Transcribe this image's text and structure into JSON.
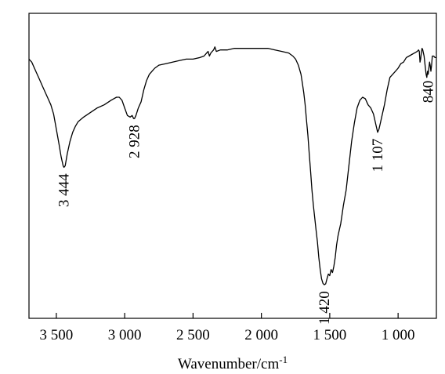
{
  "chart_data": {
    "type": "line",
    "xlabel": "Wavenumber/cm",
    "xlabel_superscript": "-1",
    "xlim": [
      3700,
      720
    ],
    "ylim": [
      0,
      1
    ],
    "x_reversed": true,
    "y_ticks_shown": false,
    "grid": false,
    "x_ticks": [
      {
        "value": 3500,
        "label": "3 500"
      },
      {
        "value": 3000,
        "label": "3 000"
      },
      {
        "value": 2500,
        "label": "2 500"
      },
      {
        "value": 2000,
        "label": "2 000"
      },
      {
        "value": 1500,
        "label": "1 500"
      },
      {
        "value": 1000,
        "label": "1 000"
      }
    ],
    "annotations": [
      {
        "label": "3 444",
        "x": 3444
      },
      {
        "label": "2 928",
        "x": 2928
      },
      {
        "label": "1 420",
        "x": 1540
      },
      {
        "label": "1 107",
        "x": 1150
      },
      {
        "label": "840",
        "x": 780
      }
    ],
    "series": [
      {
        "color": "#000000",
        "points": [
          [
            3700,
            0.85
          ],
          [
            3680,
            0.84
          ],
          [
            3650,
            0.81
          ],
          [
            3620,
            0.78
          ],
          [
            3600,
            0.76
          ],
          [
            3580,
            0.74
          ],
          [
            3560,
            0.72
          ],
          [
            3540,
            0.7
          ],
          [
            3520,
            0.67
          ],
          [
            3500,
            0.62
          ],
          [
            3480,
            0.57
          ],
          [
            3465,
            0.53
          ],
          [
            3450,
            0.5
          ],
          [
            3444,
            0.495
          ],
          [
            3435,
            0.5
          ],
          [
            3420,
            0.54
          ],
          [
            3400,
            0.58
          ],
          [
            3380,
            0.61
          ],
          [
            3360,
            0.63
          ],
          [
            3340,
            0.645
          ],
          [
            3300,
            0.66
          ],
          [
            3250,
            0.675
          ],
          [
            3200,
            0.69
          ],
          [
            3150,
            0.7
          ],
          [
            3100,
            0.715
          ],
          [
            3060,
            0.725
          ],
          [
            3040,
            0.725
          ],
          [
            3020,
            0.715
          ],
          [
            3000,
            0.69
          ],
          [
            2980,
            0.665
          ],
          [
            2960,
            0.66
          ],
          [
            2945,
            0.665
          ],
          [
            2935,
            0.655
          ],
          [
            2928,
            0.655
          ],
          [
            2918,
            0.665
          ],
          [
            2900,
            0.69
          ],
          [
            2880,
            0.71
          ],
          [
            2860,
            0.75
          ],
          [
            2840,
            0.78
          ],
          [
            2820,
            0.8
          ],
          [
            2800,
            0.81
          ],
          [
            2780,
            0.82
          ],
          [
            2750,
            0.83
          ],
          [
            2700,
            0.835
          ],
          [
            2650,
            0.84
          ],
          [
            2600,
            0.845
          ],
          [
            2550,
            0.85
          ],
          [
            2500,
            0.85
          ],
          [
            2450,
            0.855
          ],
          [
            2420,
            0.86
          ],
          [
            2400,
            0.87
          ],
          [
            2390,
            0.875
          ],
          [
            2380,
            0.86
          ],
          [
            2370,
            0.87
          ],
          [
            2350,
            0.88
          ],
          [
            2340,
            0.89
          ],
          [
            2330,
            0.875
          ],
          [
            2300,
            0.88
          ],
          [
            2250,
            0.88
          ],
          [
            2200,
            0.885
          ],
          [
            2150,
            0.885
          ],
          [
            2100,
            0.885
          ],
          [
            2050,
            0.885
          ],
          [
            2000,
            0.885
          ],
          [
            1950,
            0.885
          ],
          [
            1900,
            0.88
          ],
          [
            1850,
            0.875
          ],
          [
            1800,
            0.87
          ],
          [
            1770,
            0.86
          ],
          [
            1750,
            0.85
          ],
          [
            1730,
            0.83
          ],
          [
            1710,
            0.8
          ],
          [
            1700,
            0.77
          ],
          [
            1690,
            0.74
          ],
          [
            1680,
            0.7
          ],
          [
            1670,
            0.65
          ],
          [
            1660,
            0.6
          ],
          [
            1650,
            0.54
          ],
          [
            1640,
            0.48
          ],
          [
            1630,
            0.42
          ],
          [
            1620,
            0.37
          ],
          [
            1610,
            0.33
          ],
          [
            1600,
            0.29
          ],
          [
            1590,
            0.25
          ],
          [
            1580,
            0.2
          ],
          [
            1570,
            0.16
          ],
          [
            1560,
            0.13
          ],
          [
            1550,
            0.115
          ],
          [
            1540,
            0.11
          ],
          [
            1530,
            0.113
          ],
          [
            1520,
            0.13
          ],
          [
            1510,
            0.145
          ],
          [
            1500,
            0.14
          ],
          [
            1490,
            0.16
          ],
          [
            1480,
            0.15
          ],
          [
            1470,
            0.17
          ],
          [
            1460,
            0.2
          ],
          [
            1450,
            0.24
          ],
          [
            1440,
            0.27
          ],
          [
            1430,
            0.29
          ],
          [
            1420,
            0.31
          ],
          [
            1400,
            0.37
          ],
          [
            1380,
            0.42
          ],
          [
            1360,
            0.5
          ],
          [
            1340,
            0.58
          ],
          [
            1320,
            0.64
          ],
          [
            1300,
            0.69
          ],
          [
            1280,
            0.715
          ],
          [
            1260,
            0.725
          ],
          [
            1240,
            0.72
          ],
          [
            1220,
            0.7
          ],
          [
            1200,
            0.69
          ],
          [
            1180,
            0.67
          ],
          [
            1160,
            0.63
          ],
          [
            1150,
            0.61
          ],
          [
            1140,
            0.62
          ],
          [
            1130,
            0.64
          ],
          [
            1120,
            0.66
          ],
          [
            1100,
            0.7
          ],
          [
            1080,
            0.75
          ],
          [
            1060,
            0.79
          ],
          [
            1040,
            0.8
          ],
          [
            1020,
            0.81
          ],
          [
            1000,
            0.82
          ],
          [
            980,
            0.835
          ],
          [
            960,
            0.84
          ],
          [
            940,
            0.855
          ],
          [
            920,
            0.86
          ],
          [
            900,
            0.865
          ],
          [
            880,
            0.87
          ],
          [
            860,
            0.875
          ],
          [
            850,
            0.88
          ],
          [
            845,
            0.875
          ],
          [
            840,
            0.84
          ],
          [
            835,
            0.85
          ],
          [
            830,
            0.87
          ],
          [
            825,
            0.885
          ],
          [
            820,
            0.88
          ],
          [
            810,
            0.86
          ],
          [
            800,
            0.82
          ],
          [
            795,
            0.8
          ],
          [
            790,
            0.79
          ],
          [
            785,
            0.81
          ],
          [
            780,
            0.8
          ],
          [
            775,
            0.82
          ],
          [
            770,
            0.84
          ],
          [
            765,
            0.83
          ],
          [
            760,
            0.81
          ],
          [
            755,
            0.83
          ],
          [
            750,
            0.86
          ],
          [
            740,
            0.86
          ],
          [
            730,
            0.855
          ],
          [
            720,
            0.855
          ]
        ]
      }
    ]
  }
}
